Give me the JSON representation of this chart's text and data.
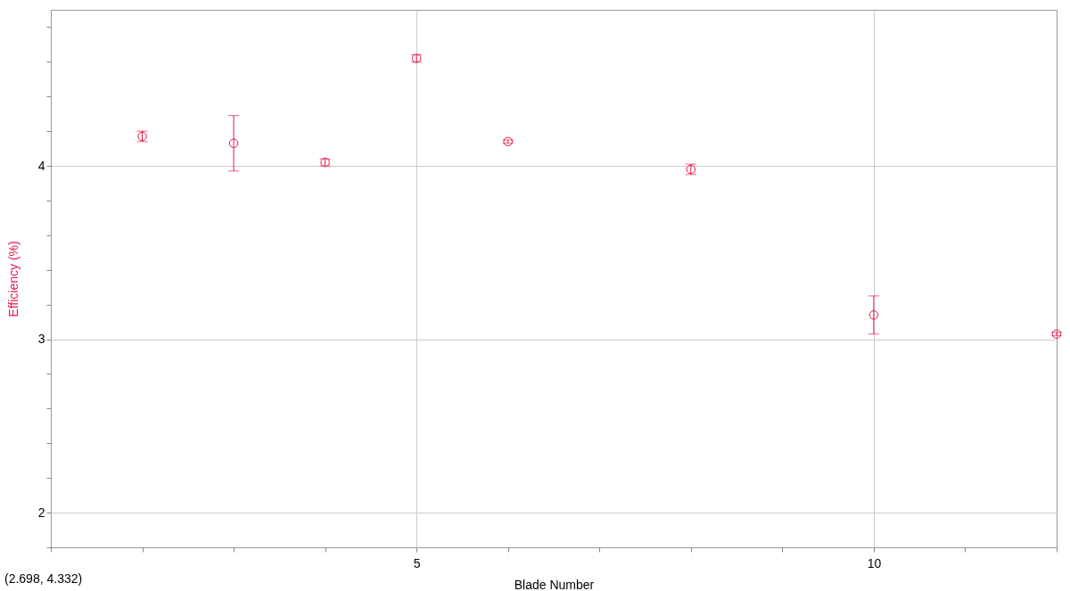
{
  "chart_data": {
    "type": "scatter",
    "xlabel": "Blade Number",
    "ylabel": "Efficiency (%)",
    "x": [
      2,
      3,
      4,
      5,
      6,
      8,
      10,
      12
    ],
    "series": [
      {
        "color": "#e8174a",
        "values": [
          4.17,
          4.13,
          4.02,
          4.62,
          4.14,
          3.98,
          3.14,
          3.03
        ],
        "errors": [
          0.03,
          [
            3.97,
            4.29
          ],
          0.02,
          0.02,
          0.01,
          0.03,
          [
            3.03,
            3.25
          ],
          0.01
        ]
      }
    ],
    "xlim": [
      1,
      12
    ],
    "xticks": [
      {
        "value": 1,
        "label": null
      },
      {
        "value": 2,
        "label": null
      },
      {
        "value": 3,
        "label": null
      },
      {
        "value": 4,
        "label": null
      },
      5,
      {
        "value": 6,
        "label": null
      },
      {
        "value": 7,
        "label": null
      },
      {
        "value": 8,
        "label": null
      },
      {
        "value": 9,
        "label": null
      },
      10,
      {
        "value": 11,
        "label": null
      },
      {
        "value": 12,
        "label": null
      }
    ],
    "ylim": [
      1.8,
      4.9
    ],
    "yticks": [
      {
        "value": 1.8,
        "label": null
      },
      2,
      {
        "value": 2.2,
        "label": null
      },
      {
        "value": 2.4,
        "label": null
      },
      {
        "value": 2.6,
        "label": null
      },
      {
        "value": 2.8,
        "label": null
      },
      3,
      {
        "value": 3.2,
        "label": null
      },
      {
        "value": 3.4,
        "label": null
      },
      {
        "value": 3.6,
        "label": null
      },
      {
        "value": 3.8,
        "label": null
      },
      4,
      {
        "value": 4.2,
        "label": null
      },
      {
        "value": 4.4,
        "label": null
      },
      {
        "value": 4.6,
        "label": null
      },
      {
        "value": 4.8,
        "label": null
      }
    ],
    "grid": true,
    "marker": "circle",
    "annotations": [
      "(2.698, 4.332)"
    ]
  }
}
